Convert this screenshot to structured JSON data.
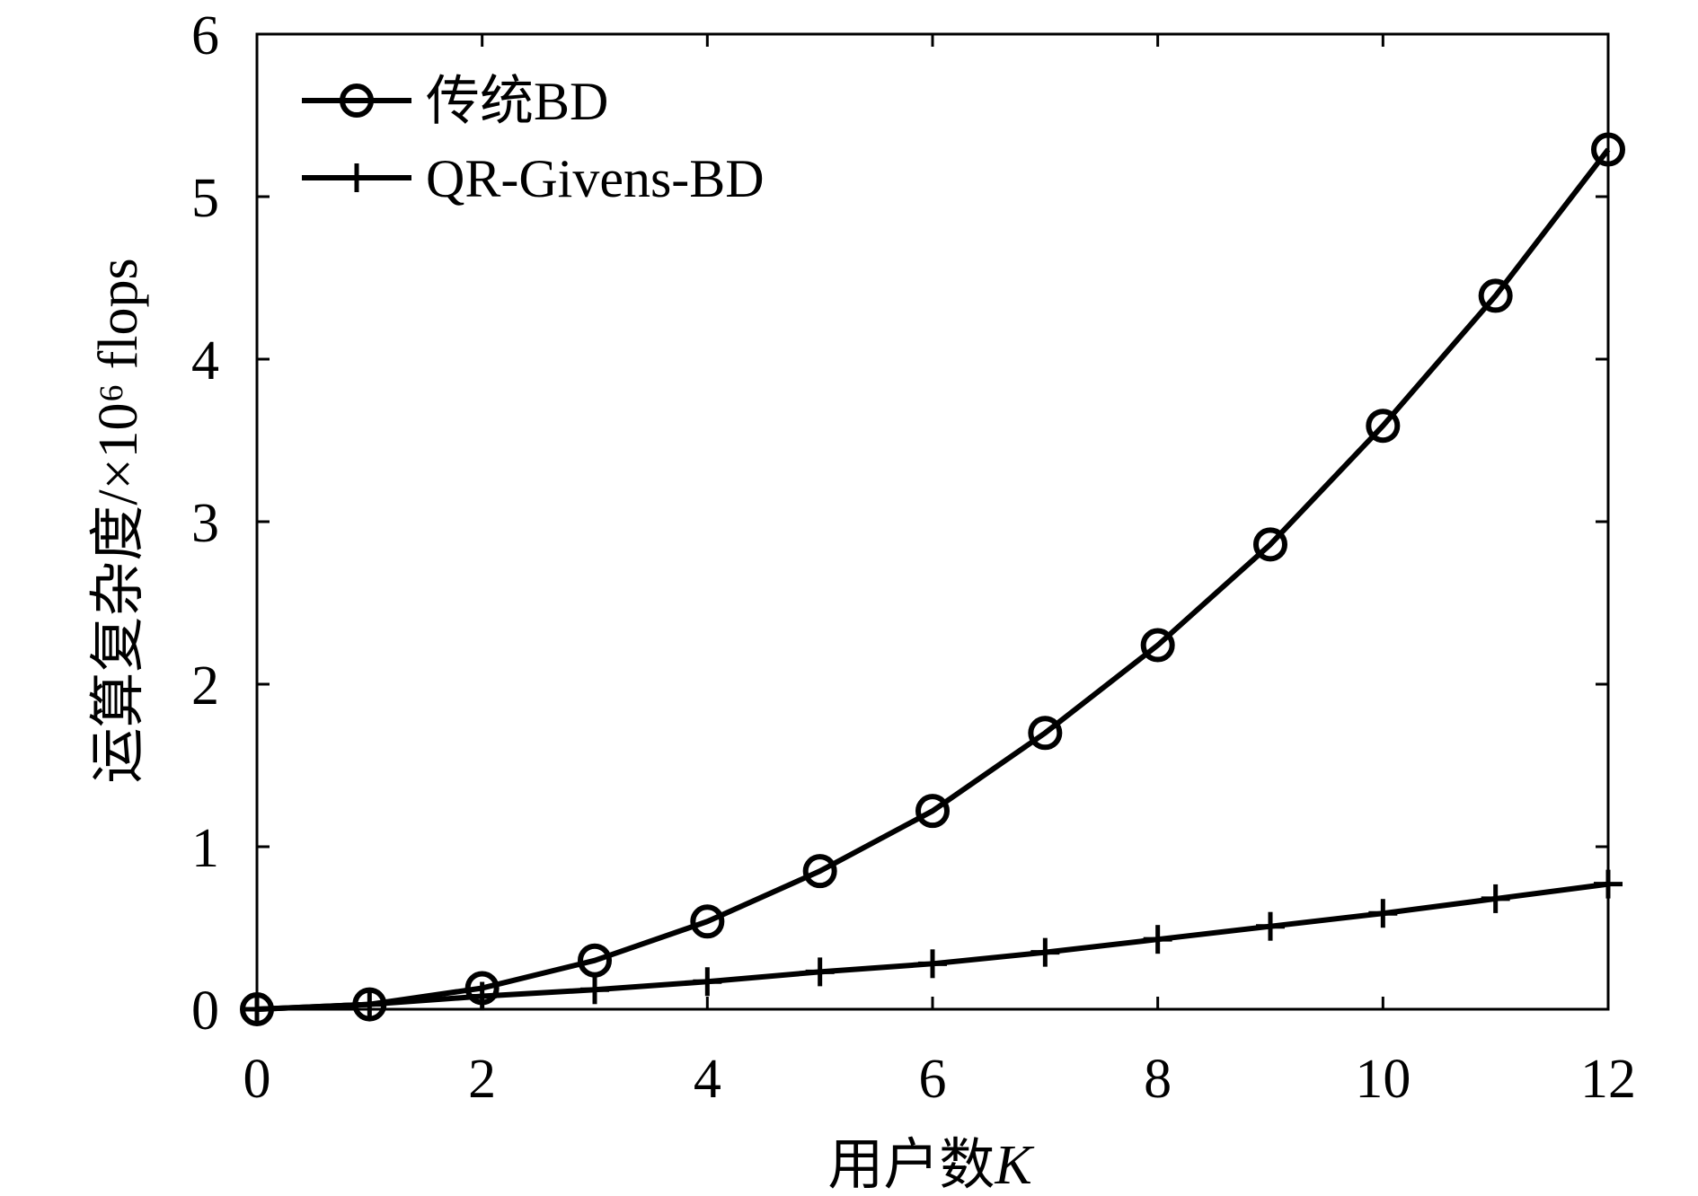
{
  "chart_data": {
    "type": "line",
    "title": "",
    "xlabel": "用户数",
    "xlabel_var": "K",
    "ylabel": "运算复杂度/×10⁶ flops",
    "xlim": [
      0,
      12
    ],
    "ylim": [
      0,
      6
    ],
    "xticks": [
      0,
      2,
      4,
      6,
      8,
      10,
      12
    ],
    "yticks": [
      0,
      1,
      2,
      3,
      4,
      5,
      6
    ],
    "x": [
      0,
      1,
      2,
      3,
      4,
      5,
      6,
      7,
      8,
      9,
      10,
      11,
      12
    ],
    "series": [
      {
        "name": "传统BD",
        "marker": "circle",
        "values": [
          0,
          0.03,
          0.13,
          0.3,
          0.54,
          0.85,
          1.22,
          1.7,
          2.24,
          2.86,
          3.59,
          4.39,
          5.29
        ]
      },
      {
        "name": "QR-Givens-BD",
        "marker": "plus",
        "values": [
          0,
          0.03,
          0.08,
          0.12,
          0.17,
          0.23,
          0.28,
          0.35,
          0.43,
          0.51,
          0.59,
          0.68,
          0.77
        ]
      }
    ],
    "legend_position": "top-left",
    "grid": false
  }
}
